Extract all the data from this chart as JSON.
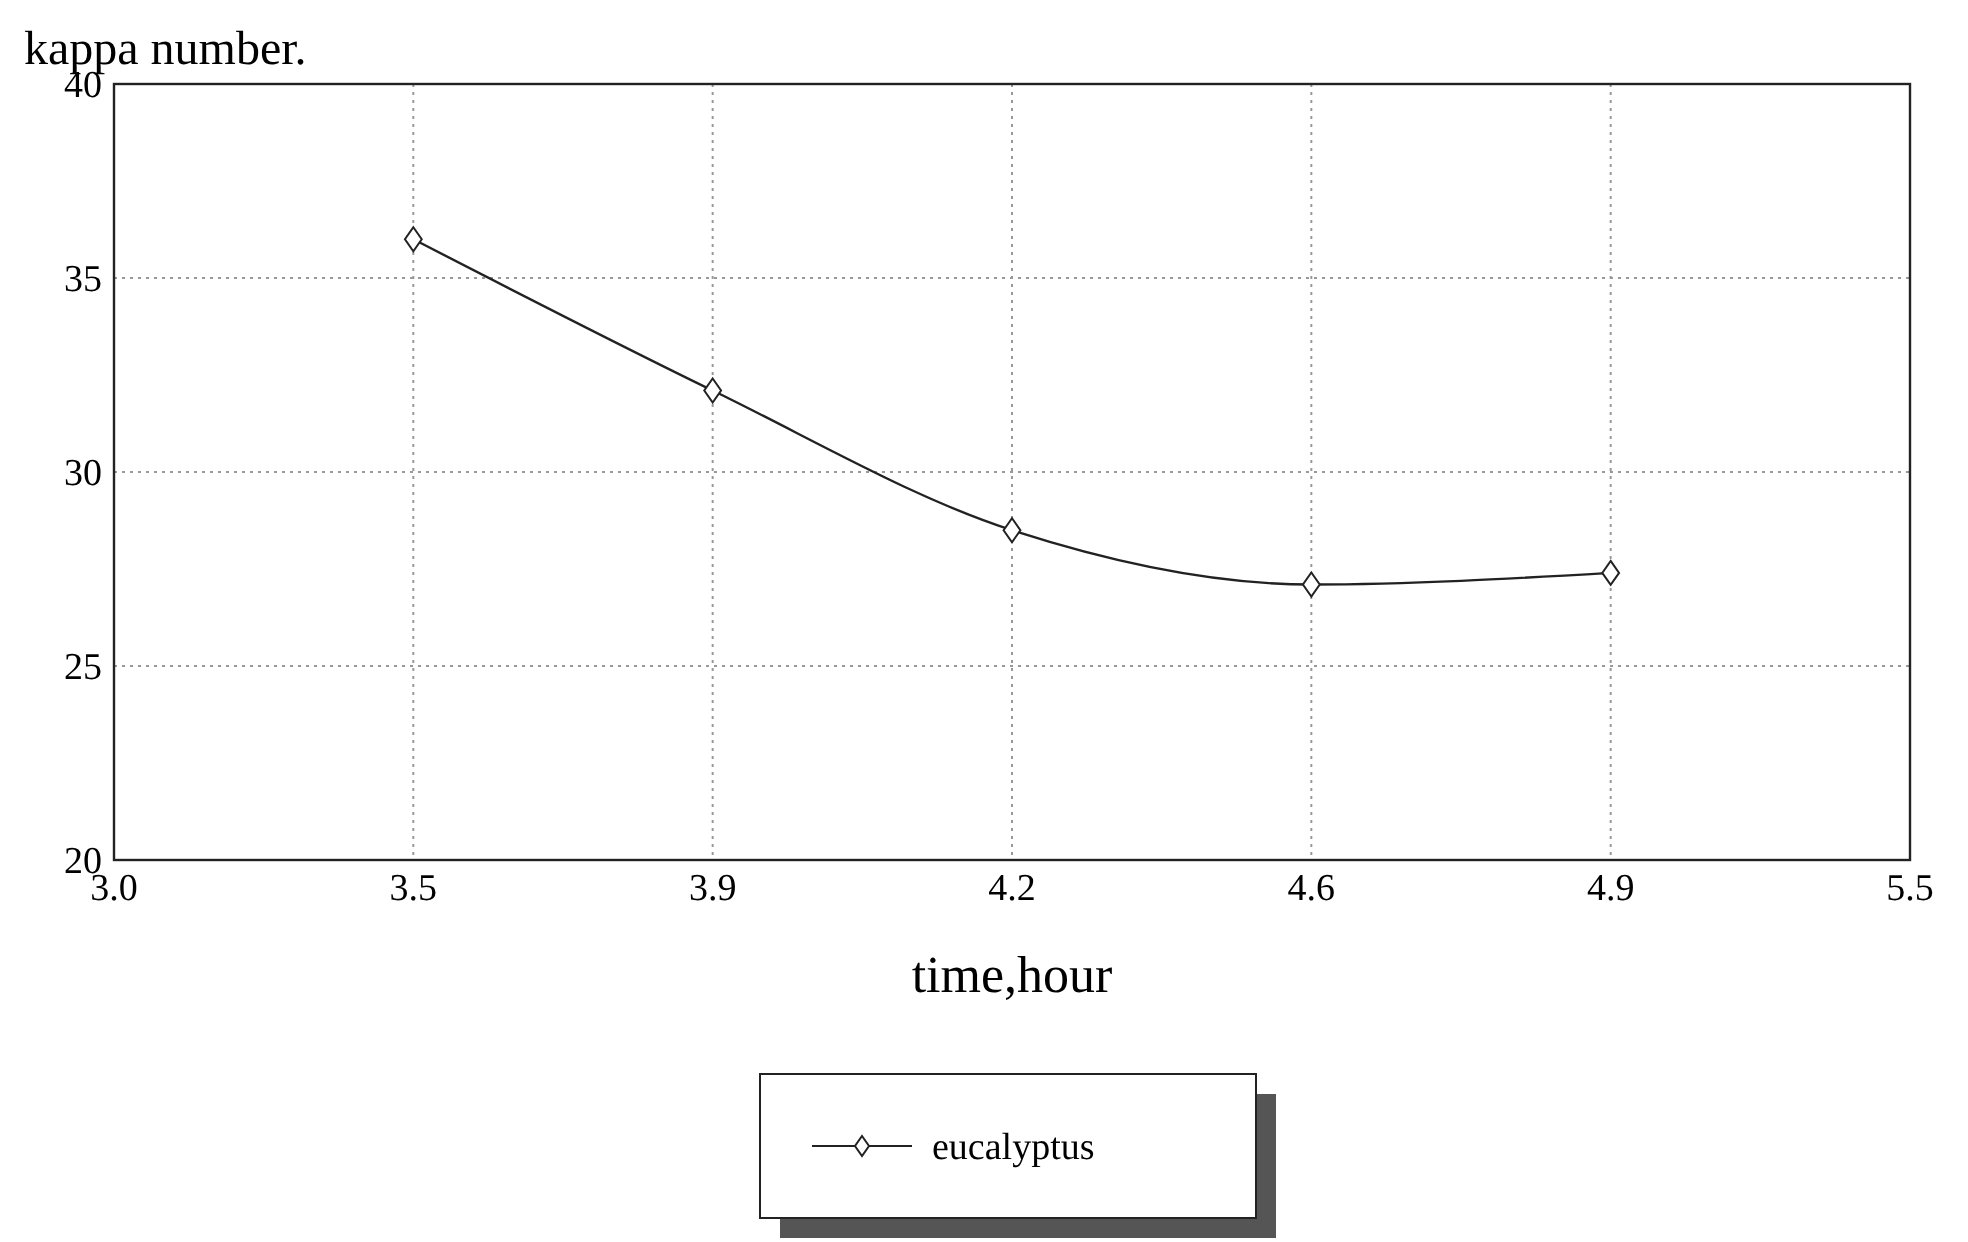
{
  "chart_data": {
    "type": "line",
    "ylabel": "kappa number.",
    "xlabel": "time,hour",
    "categories": [
      "3.0",
      "3.5",
      "3.9",
      "4.2",
      "4.6",
      "4.9",
      "5.5"
    ],
    "series": [
      {
        "name": "eucalyptus",
        "color": "#222222",
        "values": [
          null,
          36,
          32.1,
          28.5,
          27.1,
          27.4,
          null
        ]
      }
    ],
    "ylim": [
      20,
      40
    ],
    "yticks": [
      20,
      25,
      30,
      35,
      40
    ],
    "grid": true,
    "legend": "bottom",
    "marker": "diamond",
    "line_style": "solid"
  }
}
